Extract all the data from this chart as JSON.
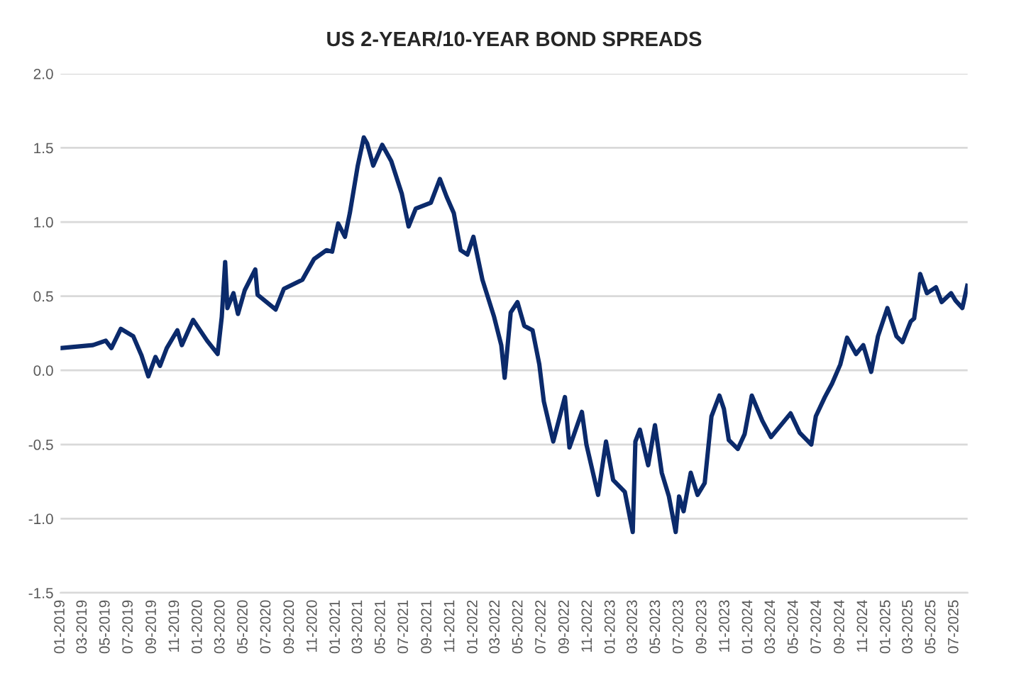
{
  "chart_data": {
    "type": "line",
    "title": "US 2-YEAR/10-YEAR BOND SPREADS",
    "series": [
      {
        "color": "#0b2a6b",
        "x": [
          "2019-01-01",
          "2019-03-28",
          "2019-05-01",
          "2019-05-16",
          "2019-06-10",
          "2019-07-13",
          "2019-08-04",
          "2019-08-22",
          "2019-09-10",
          "2019-09-22",
          "2019-10-10",
          "2019-11-07",
          "2019-11-19",
          "2019-12-19",
          "2020-01-25",
          "2020-02-22",
          "2020-03-04",
          "2020-03-13",
          "2020-03-19",
          "2020-04-04",
          "2020-04-16",
          "2020-05-04",
          "2020-06-01",
          "2020-06-07",
          "2020-07-25",
          "2020-08-16",
          "2020-10-04",
          "2020-11-04",
          "2020-12-07",
          "2020-12-22",
          "2021-01-07",
          "2021-01-25",
          "2021-02-07",
          "2021-02-28",
          "2021-03-16",
          "2021-03-25",
          "2021-04-10",
          "2021-05-04",
          "2021-05-28",
          "2021-06-25",
          "2021-07-13",
          "2021-08-01",
          "2021-09-10",
          "2021-10-04",
          "2021-10-22",
          "2021-11-10",
          "2021-11-28",
          "2021-12-16",
          "2022-01-01",
          "2022-01-25",
          "2022-02-25",
          "2022-03-16",
          "2022-03-25",
          "2022-04-10",
          "2022-04-28",
          "2022-05-16",
          "2022-06-07",
          "2022-06-25",
          "2022-07-07",
          "2022-08-01",
          "2022-09-01",
          "2022-09-13",
          "2022-10-16",
          "2022-10-28",
          "2022-11-28",
          "2022-12-19",
          "2023-01-07",
          "2023-02-07",
          "2023-02-28",
          "2023-03-07",
          "2023-03-19",
          "2023-04-10",
          "2023-04-28",
          "2023-05-16",
          "2023-06-04",
          "2023-06-22",
          "2023-07-01",
          "2023-07-13",
          "2023-08-01",
          "2023-08-19",
          "2023-09-07",
          "2023-09-25",
          "2023-10-16",
          "2023-10-28",
          "2023-11-10",
          "2023-12-04",
          "2023-12-22",
          "2024-01-10",
          "2024-02-07",
          "2024-03-01",
          "2024-04-22",
          "2024-05-16",
          "2024-06-16",
          "2024-06-28",
          "2024-07-22",
          "2024-08-10",
          "2024-09-01",
          "2024-09-19",
          "2024-10-13",
          "2024-11-01",
          "2024-11-22",
          "2024-12-10",
          "2025-01-04",
          "2025-01-28",
          "2025-02-13",
          "2025-03-07",
          "2025-03-16",
          "2025-04-01",
          "2025-04-19",
          "2025-05-13",
          "2025-05-28",
          "2025-06-22",
          "2025-07-04",
          "2025-07-22",
          "2025-08-04"
        ],
        "values": [
          0.15,
          0.17,
          0.2,
          0.15,
          0.28,
          0.23,
          0.1,
          -0.04,
          0.09,
          0.03,
          0.15,
          0.27,
          0.17,
          0.34,
          0.2,
          0.11,
          0.36,
          0.73,
          0.42,
          0.52,
          0.38,
          0.54,
          0.68,
          0.51,
          0.41,
          0.55,
          0.61,
          0.75,
          0.81,
          0.8,
          0.99,
          0.9,
          1.06,
          1.38,
          1.57,
          1.53,
          1.38,
          1.52,
          1.41,
          1.19,
          0.97,
          1.09,
          1.13,
          1.29,
          1.17,
          1.06,
          0.81,
          0.78,
          0.9,
          0.61,
          0.36,
          0.17,
          -0.05,
          0.39,
          0.46,
          0.3,
          0.27,
          0.04,
          -0.21,
          -0.48,
          -0.18,
          -0.52,
          -0.28,
          -0.5,
          -0.84,
          -0.48,
          -0.74,
          -0.82,
          -1.09,
          -0.48,
          -0.4,
          -0.64,
          -0.37,
          -0.69,
          -0.85,
          -1.09,
          -0.85,
          -0.95,
          -0.69,
          -0.84,
          -0.76,
          -0.31,
          -0.17,
          -0.26,
          -0.47,
          -0.53,
          -0.43,
          -0.17,
          -0.34,
          -0.45,
          -0.29,
          -0.42,
          -0.5,
          -0.31,
          -0.18,
          -0.09,
          0.04,
          0.22,
          0.11,
          0.17,
          -0.01,
          0.23,
          0.42,
          0.23,
          0.19,
          0.33,
          0.35,
          0.65,
          0.52,
          0.56,
          0.46,
          0.52,
          0.47,
          0.42,
          0.57
        ]
      }
    ],
    "xlim": [
      "2019-01-01",
      "2025-08-05"
    ],
    "xticks": [
      {
        "value": "2019-01",
        "label": "01-2019"
      },
      {
        "value": "2019-03",
        "label": "03-2019"
      },
      {
        "value": "2019-05",
        "label": "05-2019"
      },
      {
        "value": "2019-07",
        "label": "07-2019"
      },
      {
        "value": "2019-09",
        "label": "09-2019"
      },
      {
        "value": "2019-11",
        "label": "11-2019"
      },
      {
        "value": "2020-01",
        "label": "01-2020"
      },
      {
        "value": "2020-03",
        "label": "03-2020"
      },
      {
        "value": "2020-05",
        "label": "05-2020"
      },
      {
        "value": "2020-07",
        "label": "07-2020"
      },
      {
        "value": "2020-09",
        "label": "09-2020"
      },
      {
        "value": "2020-11",
        "label": "11-2020"
      },
      {
        "value": "2021-01",
        "label": "01-2021"
      },
      {
        "value": "2021-03",
        "label": "03-2021"
      },
      {
        "value": "2021-05",
        "label": "05-2021"
      },
      {
        "value": "2021-07",
        "label": "07-2021"
      },
      {
        "value": "2021-09",
        "label": "09-2021"
      },
      {
        "value": "2021-11",
        "label": "11-2021"
      },
      {
        "value": "2022-01",
        "label": "01-2022"
      },
      {
        "value": "2022-03",
        "label": "03-2022"
      },
      {
        "value": "2022-05",
        "label": "05-2022"
      },
      {
        "value": "2022-07",
        "label": "07-2022"
      },
      {
        "value": "2022-09",
        "label": "09-2022"
      },
      {
        "value": "2022-11",
        "label": "11-2022"
      },
      {
        "value": "2023-01",
        "label": "01-2023"
      },
      {
        "value": "2023-03",
        "label": "03-2023"
      },
      {
        "value": "2023-05",
        "label": "05-2023"
      },
      {
        "value": "2023-07",
        "label": "07-2023"
      },
      {
        "value": "2023-09",
        "label": "09-2023"
      },
      {
        "value": "2023-11",
        "label": "11-2023"
      },
      {
        "value": "2024-01",
        "label": "01-2024"
      },
      {
        "value": "2024-03",
        "label": "03-2024"
      },
      {
        "value": "2024-05",
        "label": "05-2024"
      },
      {
        "value": "2024-07",
        "label": "07-2024"
      },
      {
        "value": "2024-09",
        "label": "09-2024"
      },
      {
        "value": "2024-11",
        "label": "11-2024"
      },
      {
        "value": "2025-01",
        "label": "01-2025"
      },
      {
        "value": "2025-03",
        "label": "03-2025"
      },
      {
        "value": "2025-05",
        "label": "05-2025"
      },
      {
        "value": "2025-07",
        "label": "07-2025"
      }
    ],
    "ylim": [
      -1.5,
      2.0
    ],
    "yticks": [
      {
        "value": -1.5,
        "label": "-1.5"
      },
      {
        "value": -1.0,
        "label": "-1.0"
      },
      {
        "value": -0.5,
        "label": "-0.5"
      },
      {
        "value": 0,
        "label": "0.0"
      },
      {
        "value": 0.5,
        "label": "0.5"
      },
      {
        "value": 1.0,
        "label": "1.0"
      },
      {
        "value": 1.5,
        "label": "1.5"
      },
      {
        "value": 2.0,
        "label": "2.0"
      }
    ],
    "grid": "y",
    "line_style": "solid"
  }
}
